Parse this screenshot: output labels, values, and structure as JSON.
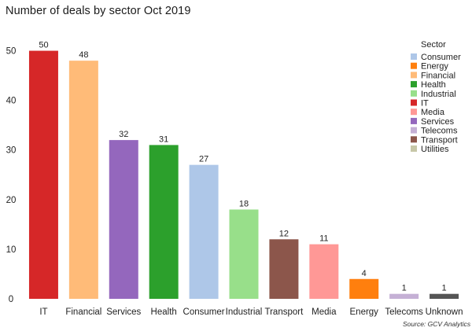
{
  "header": {
    "title": "Number of deals by sector Oct 2019"
  },
  "footer": {
    "source": "Source: GCV Analytics"
  },
  "chart_data": {
    "type": "bar",
    "title": "Number of deals by sector Oct 2019",
    "xlabel": "",
    "ylabel": "",
    "ylim": [
      0,
      55
    ],
    "yticks": [
      0,
      10,
      20,
      30,
      40,
      50
    ],
    "grid": false,
    "legend_position": "top-right",
    "legend_title": "Sector",
    "categories": [
      "IT",
      "Financial",
      "Services",
      "Health",
      "Consumer",
      "Industrial",
      "Transport",
      "Media",
      "Energy",
      "Telecoms",
      "Unknown"
    ],
    "values": [
      50,
      48,
      32,
      31,
      27,
      18,
      12,
      11,
      4,
      1,
      1
    ],
    "bar_colors": [
      "#d62728",
      "#ffbb78",
      "#9467bd",
      "#2ca02c",
      "#aec7e8",
      "#98df8a",
      "#8c564b",
      "#ff9896",
      "#ff7f0e",
      "#c5b0d5",
      "#555555"
    ],
    "legend": [
      {
        "label": "Consumer",
        "color": "#aec7e8"
      },
      {
        "label": "Energy",
        "color": "#ff7f0e"
      },
      {
        "label": "Financial",
        "color": "#ffbb78"
      },
      {
        "label": "Health",
        "color": "#2ca02c"
      },
      {
        "label": "Industrial",
        "color": "#98df8a"
      },
      {
        "label": "IT",
        "color": "#d62728"
      },
      {
        "label": "Media",
        "color": "#ff9896"
      },
      {
        "label": "Services",
        "color": "#9467bd"
      },
      {
        "label": "Telecoms",
        "color": "#c5b0d5"
      },
      {
        "label": "Transport",
        "color": "#8c564b"
      },
      {
        "label": "Utilities",
        "color": "#c7c7a8"
      }
    ]
  }
}
